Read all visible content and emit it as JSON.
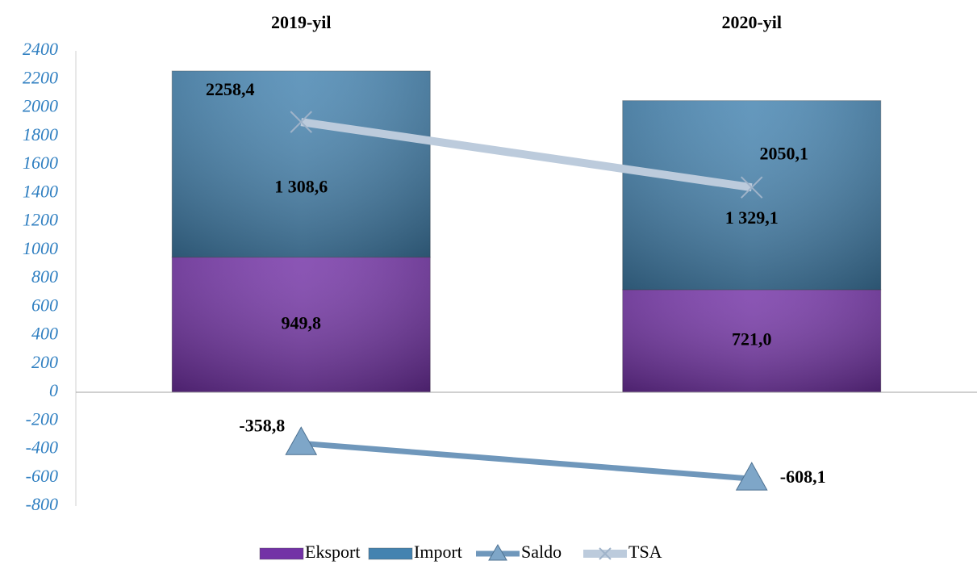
{
  "chart_data": {
    "type": "bar",
    "categories": [
      "2019-yil",
      "2020-yil"
    ],
    "series": [
      {
        "name": "Eksport",
        "type": "bar",
        "color": "#7332a6",
        "values": [
          949.8,
          721.0
        ],
        "value_labels": [
          "949,8",
          "721,0"
        ]
      },
      {
        "name": "Import",
        "type": "bar",
        "color": "#4483b0",
        "values": [
          1308.6,
          1329.1
        ],
        "value_labels": [
          "1 308,6",
          "1 329,1"
        ]
      },
      {
        "name": "Saldo",
        "type": "line",
        "color": "#6f97bb",
        "values": [
          -358.8,
          -608.1
        ],
        "value_labels": [
          "-358,8",
          "-608,1"
        ]
      },
      {
        "name": "TSA",
        "type": "line",
        "color": "#bccbdc",
        "values": [
          1900,
          1440
        ]
      }
    ],
    "annotations": [
      "2258,4",
      "2050,1"
    ],
    "stacked": true,
    "ylim": [
      -800,
      2400
    ],
    "yticks": [
      -800,
      -600,
      -400,
      -200,
      0,
      200,
      400,
      600,
      800,
      1000,
      1200,
      1400,
      1600,
      1800,
      2000,
      2200,
      2400
    ],
    "legend": "bottom"
  }
}
